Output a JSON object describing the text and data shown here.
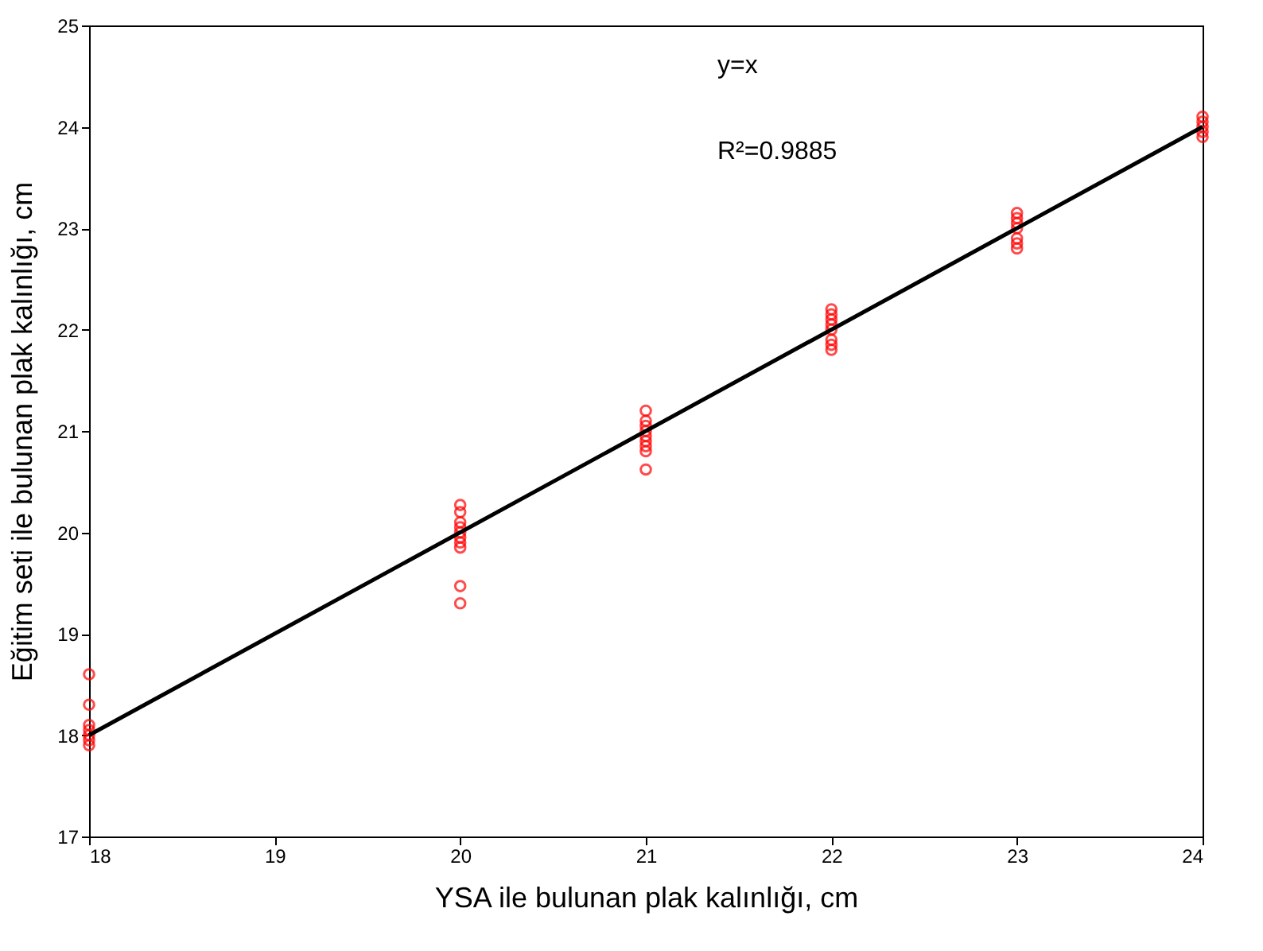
{
  "chart_data": {
    "type": "scatter",
    "xlabel": "YSA ile bulunan plak kalınlığı, cm",
    "ylabel": "Eğitim seti ile bulunan plak kalınlığı, cm",
    "xlim": [
      18,
      24
    ],
    "xticks": [
      18,
      19,
      20,
      21,
      22,
      23,
      24
    ],
    "ylim": [
      17,
      25
    ],
    "yticks": [
      17,
      18,
      19,
      20,
      21,
      22,
      23,
      24,
      25
    ],
    "grid": false,
    "marker": "circle",
    "annotations": [
      "y=x",
      "R²=0.9885"
    ],
    "series": [
      {
        "color": "#ff0000",
        "x": [
          18,
          18,
          18,
          18,
          18,
          18,
          18,
          20,
          20,
          20,
          20,
          20,
          20,
          20,
          20,
          20,
          20,
          21,
          21,
          21,
          21,
          21,
          21,
          21,
          21,
          21,
          22,
          22,
          22,
          22,
          22,
          22,
          22,
          22,
          23,
          23,
          23,
          23,
          23,
          23,
          23,
          24,
          24,
          24,
          24,
          24
        ],
        "values": [
          18.6,
          18.3,
          18.1,
          18.05,
          18.0,
          17.95,
          17.9,
          19.3,
          19.47,
          19.85,
          19.9,
          19.95,
          20.0,
          20.05,
          20.1,
          20.2,
          20.27,
          20.62,
          20.8,
          20.85,
          20.9,
          20.95,
          21.0,
          21.05,
          21.1,
          21.2,
          21.8,
          21.85,
          21.9,
          22.0,
          22.05,
          22.1,
          22.15,
          22.2,
          22.8,
          22.85,
          22.9,
          23.0,
          23.05,
          23.1,
          23.15,
          23.9,
          23.95,
          24.0,
          24.05,
          24.1
        ]
      },
      {
        "type": "line",
        "color": "#000000",
        "line_style": "solid",
        "marker": "none",
        "x": [
          18,
          24
        ],
        "values": [
          18,
          24
        ]
      }
    ]
  }
}
